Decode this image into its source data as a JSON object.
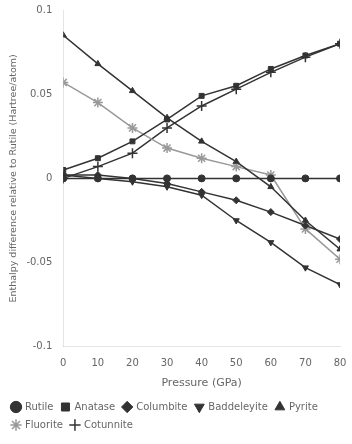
{
  "chart_data": {
    "type": "line",
    "xlabel": "Pressure (GPa)",
    "ylabel": "Enthalpy difference relative to Rutile (Hartree/atom)",
    "x": [
      0,
      10,
      20,
      30,
      40,
      50,
      60,
      70,
      80
    ],
    "series": [
      {
        "name": "Rutile",
        "color": "#333333",
        "marker": "circle",
        "values": [
          0.0,
          0.0,
          0.0,
          0.0,
          0.0,
          0.0,
          0.0,
          0.0,
          0.0
        ]
      },
      {
        "name": "Anatase",
        "color": "#333333",
        "marker": "square",
        "values": [
          0.005,
          0.012,
          0.022,
          0.035,
          0.049,
          0.055,
          0.065,
          0.073,
          0.08
        ]
      },
      {
        "name": "Columbite",
        "color": "#333333",
        "marker": "diamond",
        "values": [
          0.002,
          0.002,
          0.0,
          -0.003,
          -0.008,
          -0.013,
          -0.02,
          -0.028,
          -0.036
        ]
      },
      {
        "name": "Baddeleyite",
        "color": "#333333",
        "marker": "triangle-down",
        "values": [
          0.002,
          0.0,
          -0.002,
          -0.005,
          -0.01,
          -0.025,
          -0.038,
          -0.053,
          -0.063
        ]
      },
      {
        "name": "Pyrite",
        "color": "#333333",
        "marker": "triangle-up",
        "values": [
          0.085,
          0.068,
          0.052,
          0.036,
          0.022,
          0.01,
          -0.005,
          -0.025,
          -0.042
        ]
      },
      {
        "name": "Fluorite",
        "color": "#999999",
        "marker": "star",
        "values": [
          0.057,
          0.045,
          0.03,
          0.018,
          0.012,
          0.007,
          0.002,
          -0.03,
          -0.048
        ]
      },
      {
        "name": "Cotunnite",
        "color": "#333333",
        "marker": "plus",
        "values": [
          0.0,
          0.007,
          0.015,
          0.03,
          0.043,
          0.053,
          0.063,
          0.072,
          0.08
        ]
      }
    ],
    "xlim": [
      0,
      80
    ],
    "ylim": [
      -0.1,
      0.1
    ],
    "xticks": [
      0,
      10,
      20,
      30,
      40,
      50,
      60,
      70,
      80
    ],
    "yticks": [
      -0.1,
      -0.05,
      0,
      0.05,
      0.1
    ],
    "grid": false,
    "legend": "lower left"
  }
}
